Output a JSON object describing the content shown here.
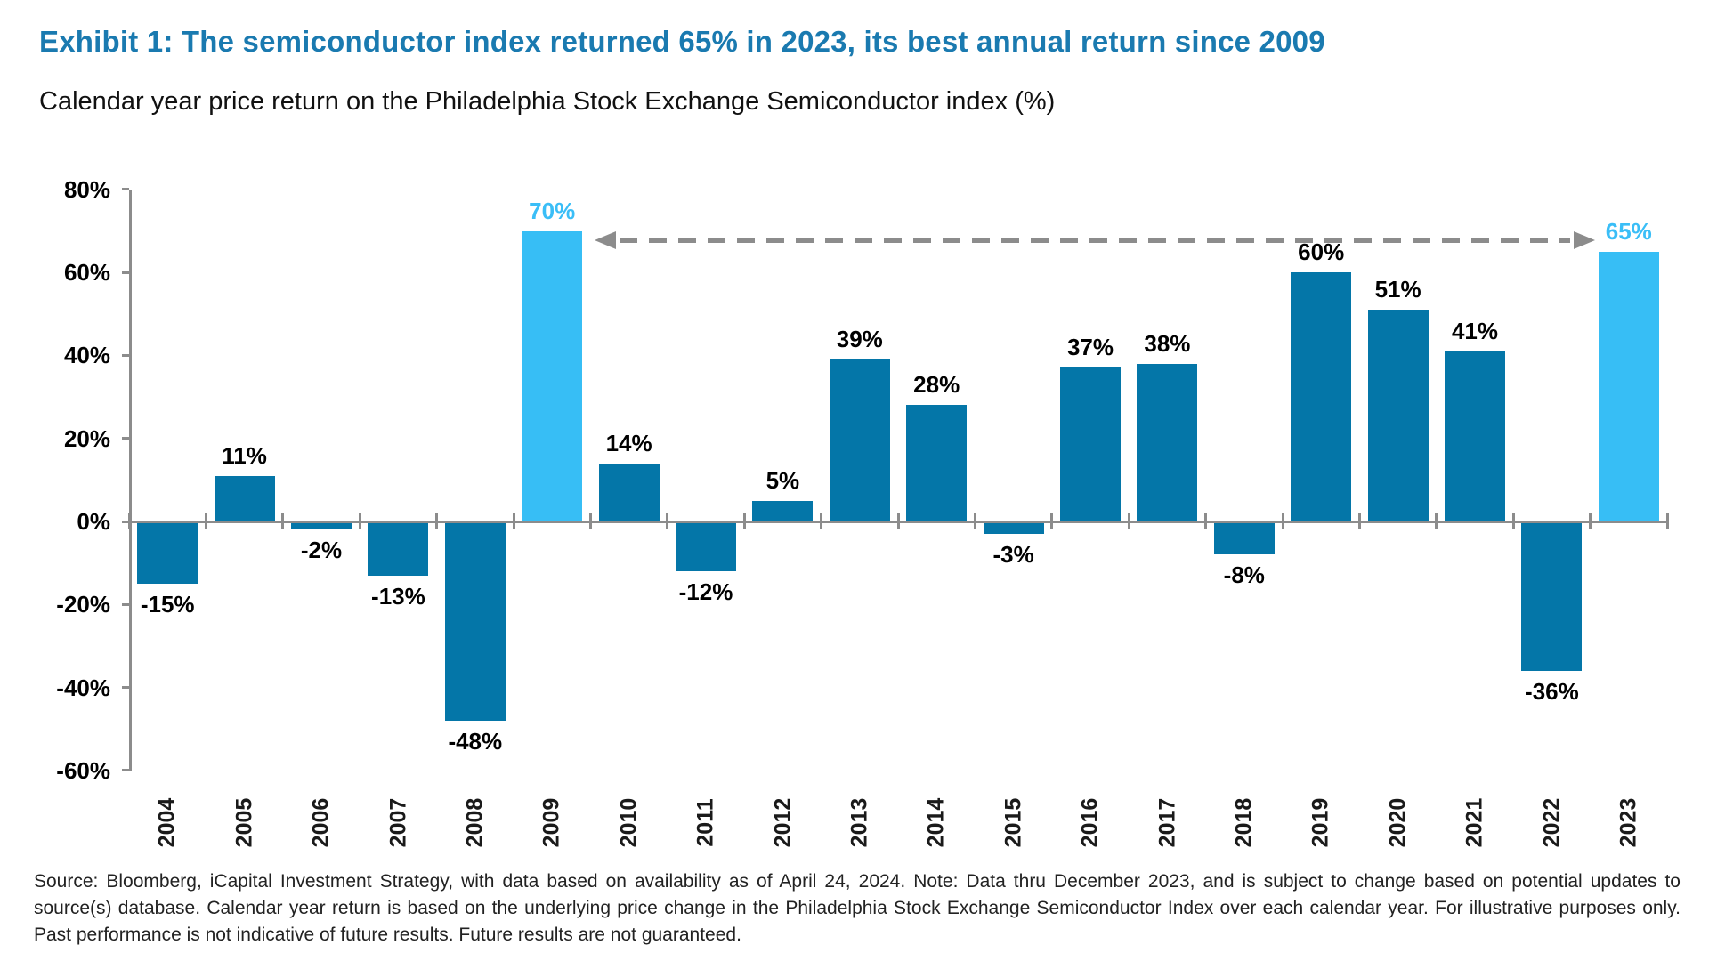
{
  "header": {
    "title": "Exhibit 1: The semiconductor index returned 65% in 2023, its best annual return since 2009",
    "subtitle": "Calendar year price return on the Philadelphia Stock Exchange Semiconductor index (%)"
  },
  "chart_data": {
    "type": "bar",
    "title": "Calendar year price return on the Philadelphia Stock Exchange Semiconductor index (%)",
    "categories": [
      "2004",
      "2005",
      "2006",
      "2007",
      "2008",
      "2009",
      "2010",
      "2011",
      "2012",
      "2013",
      "2014",
      "2015",
      "2016",
      "2017",
      "2018",
      "2019",
      "2020",
      "2021",
      "2022",
      "2023"
    ],
    "values": [
      -15,
      11,
      -2,
      -13,
      -48,
      70,
      14,
      -12,
      5,
      39,
      28,
      -3,
      37,
      38,
      -8,
      60,
      51,
      41,
      -36,
      65
    ],
    "bar_labels": [
      "-15%",
      "11%",
      "-2%",
      "-13%",
      "-48%",
      "70%",
      "14%",
      "-12%",
      "5%",
      "39%",
      "28%",
      "-3%",
      "37%",
      "38%",
      "-8%",
      "60%",
      "51%",
      "41%",
      "-36%",
      "65%"
    ],
    "highlighted_years": [
      "2009",
      "2023"
    ],
    "ylim": [
      -60,
      80
    ],
    "ytick_step": 20,
    "ytick_labels": [
      "80%",
      "60%",
      "40%",
      "20%",
      "0%",
      "-20%",
      "-40%",
      "-60%"
    ],
    "grid": "off",
    "legend": "none",
    "annotation": {
      "type": "dashed-double-arrow",
      "between": [
        "2009",
        "2023"
      ],
      "meaning": "compares the 70% return in 2009 with the 65% return in 2023"
    },
    "colors": {
      "bar_default": "#0476a8",
      "bar_highlight": "#37bef5",
      "value_label_default": "#000000",
      "value_label_highlight": "#3abef7",
      "axis": "#8c8c8c",
      "arrow": "#8c8c8c",
      "title_accent": "#1a7ab0"
    }
  },
  "footer": {
    "source_text": "Source: Bloomberg, iCapital Investment Strategy, with data based on availability as of April 24, 2024. Note: Data thru December 2023, and is subject to change based on potential updates to source(s) database. Calendar year return is based on the underlying price change in the Philadelphia Stock Exchange Semiconductor Index over each calendar year. For illustrative purposes only. Past performance is not indicative of future results. Future results are not guaranteed."
  }
}
